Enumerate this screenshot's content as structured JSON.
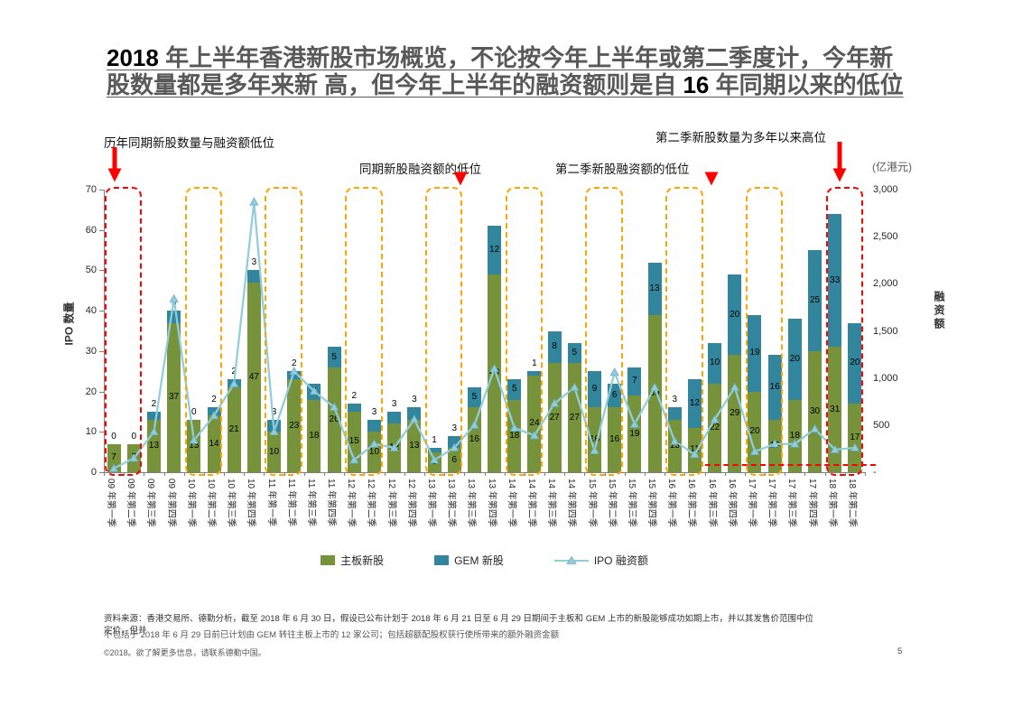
{
  "page": {
    "page_number": "5",
    "copyright": "©2018。欲了解更多信息，请联系德勤中国。",
    "source_line1": "资料来源：香港交易所、德勤分析，截至 2018 年 6 月 30 日，假设已公布计划于 2018 年 6 月 21 日至 6 月 29 日期间于主板和 GEM 上市的新股能够成功如期上市，并以其发售价范围中位",
    "source_line2": "定价，但并",
    "source_line3": "不包括于 2018 年 6 月 29 日前已计划由 GEM 转往主板上市的 12 家公司；包括超额配股权获行使所带来的额外融资金额"
  },
  "title": {
    "part1": "2018",
    "part2": " 年上半年香港新股市场概览，不论按今年上半年或第二季度计，今年新股数量都是多年来新 高，但今年上半年的融资额则是自 ",
    "part3": "16",
    "part4": " 年同期以来的低位"
  },
  "annotations": {
    "left_low": "历年同期新股数量与融资额低位",
    "h1_financing_low": "同期新股融资额的低位",
    "q2_financing_low": "第二季新股融资额的低位",
    "q2_count_high": "第二季新股数量为多年以来高位",
    "right_axis_unit": "(亿港元)"
  },
  "chart_data": {
    "type": "stacked-bar+line",
    "title": "",
    "categories": [
      "09 年第一季",
      "09 年第二季",
      "09 年第三季",
      "09 年第四季",
      "10 年第一季",
      "10 年第二季",
      "10 年第三季",
      "10 年第四季",
      "11 年第一季",
      "11 年第二季",
      "11 年第三季",
      "11 年第四季",
      "12 年第一季",
      "12 年第二季",
      "12 年第三季",
      "12 年第四季",
      "13 年第一季",
      "13 年第二季",
      "13 年第三季",
      "13 年第四季",
      "14 年第一季",
      "14 年第二季",
      "14 年第三季",
      "14 年第四季",
      "15 年第一季",
      "15 年第二季",
      "15 年第三季",
      "15 年第四季",
      "16 年第一季",
      "16 年第二季",
      "16 年第三季",
      "16 年第四季",
      "17 年第一季",
      "17 年第二季",
      "17 年第三季",
      "17 年第四季",
      "18 年第一季",
      "18 年第二季"
    ],
    "series": [
      {
        "name": "主板新股",
        "type": "bar",
        "color": "#76933C",
        "values": [
          7,
          7,
          13,
          37,
          13,
          14,
          21,
          47,
          10,
          23,
          18,
          26,
          15,
          10,
          12,
          13,
          5,
          6,
          16,
          49,
          18,
          24,
          27,
          27,
          16,
          16,
          19,
          39,
          13,
          11,
          22,
          29,
          20,
          13,
          18,
          30,
          31,
          17
        ]
      },
      {
        "name": "GEM 新股",
        "type": "bar",
        "color": "#31859C",
        "values": [
          0,
          0,
          2,
          3,
          0,
          2,
          2,
          3,
          3,
          2,
          4,
          5,
          2,
          3,
          3,
          3,
          1,
          3,
          5,
          12,
          5,
          1,
          8,
          5,
          9,
          6,
          7,
          13,
          3,
          12,
          10,
          20,
          19,
          16,
          20,
          25,
          33,
          20
        ]
      },
      {
        "name": "IPO 融资额",
        "type": "line",
        "axis": "right",
        "color": "#92CDDC",
        "values": [
          40,
          150,
          430,
          1840,
          340,
          600,
          940,
          2870,
          430,
          1070,
          860,
          690,
          130,
          300,
          260,
          560,
          130,
          260,
          500,
          1100,
          470,
          390,
          730,
          900,
          230,
          1060,
          510,
          900,
          330,
          190,
          560,
          900,
          220,
          300,
          300,
          460,
          240,
          260
        ]
      }
    ],
    "left_axis": {
      "title": "IPO 数量",
      "min": 0,
      "max": 70,
      "step": 10
    },
    "right_axis": {
      "title": "融资额",
      "unit": "(亿港元)",
      "min": 0,
      "max": 3000,
      "step": 500,
      "tick_labels": [
        "3,000",
        "2,500",
        "2,000",
        "1,500",
        "1,000",
        "500",
        "-"
      ]
    },
    "legend_position": "bottom",
    "grid": false,
    "highlight_boxes": [
      {
        "start": 0,
        "end": 1,
        "color": "red"
      },
      {
        "start": 4,
        "end": 5,
        "color": "orange"
      },
      {
        "start": 8,
        "end": 9,
        "color": "orange"
      },
      {
        "start": 12,
        "end": 13,
        "color": "orange"
      },
      {
        "start": 16,
        "end": 17,
        "color": "orange"
      },
      {
        "start": 20,
        "end": 21,
        "color": "orange"
      },
      {
        "start": 24,
        "end": 25,
        "color": "orange"
      },
      {
        "start": 28,
        "end": 29,
        "color": "orange"
      },
      {
        "start": 32,
        "end": 33,
        "color": "orange"
      },
      {
        "start": 36,
        "end": 37,
        "color": "red"
      }
    ],
    "q2_low_line": {
      "value": 90,
      "start": 30,
      "end": 38,
      "color": "#FF0000"
    }
  }
}
